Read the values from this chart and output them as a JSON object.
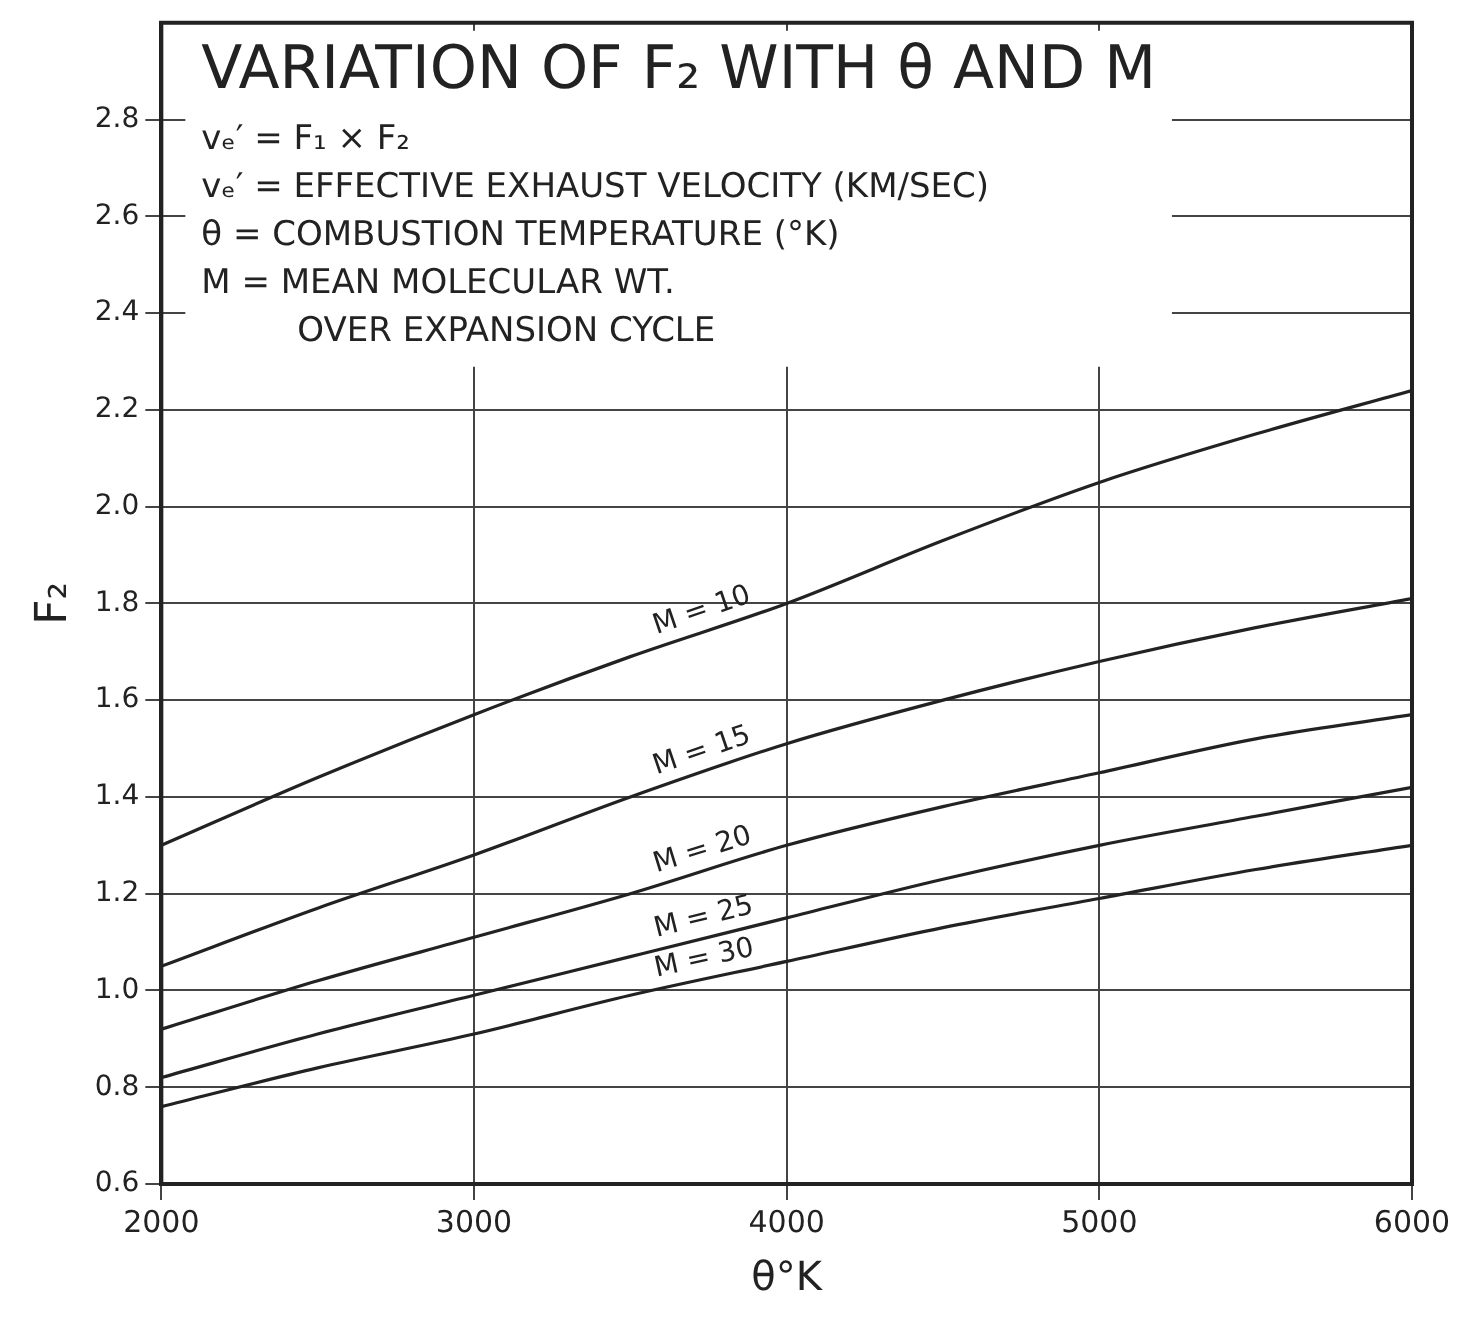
{
  "chart_data": {
    "type": "line",
    "title": "VARIATION OF F₂ WITH θ AND M",
    "xlabel": "θ°K",
    "ylabel": "F₂",
    "annotations": [
      "vₑ′ = F₁ × F₂",
      "vₑ′ = EFFECTIVE EXHAUST VELOCITY (KM/SEC)",
      "θ = COMBUSTION TEMPERATURE (°K)",
      "M = MEAN MOLECULAR WT.",
      "OVER EXPANSION CYCLE"
    ],
    "x": [
      2000,
      2500,
      3000,
      3500,
      4000,
      4500,
      5000,
      5500,
      6000
    ],
    "series": [
      {
        "name": "M = 10",
        "color": "#222222",
        "values": [
          1.3,
          1.44,
          1.57,
          1.69,
          1.8,
          1.93,
          2.05,
          2.15,
          2.24
        ]
      },
      {
        "name": "M = 15",
        "color": "#222222",
        "values": [
          1.05,
          1.17,
          1.28,
          1.4,
          1.51,
          1.6,
          1.68,
          1.75,
          1.81
        ]
      },
      {
        "name": "M = 20",
        "color": "#222222",
        "values": [
          0.92,
          1.02,
          1.11,
          1.2,
          1.3,
          1.38,
          1.45,
          1.52,
          1.57
        ]
      },
      {
        "name": "M = 25",
        "color": "#222222",
        "values": [
          0.82,
          0.91,
          0.99,
          1.07,
          1.15,
          1.23,
          1.3,
          1.36,
          1.42
        ]
      },
      {
        "name": "M = 30",
        "color": "#222222",
        "values": [
          0.76,
          0.84,
          0.91,
          0.99,
          1.06,
          1.13,
          1.19,
          1.25,
          1.3
        ]
      }
    ],
    "xlim": [
      2000,
      6000
    ],
    "xticks": [
      2000,
      3000,
      4000,
      5000,
      6000
    ],
    "ylim": [
      0.6,
      3.0
    ],
    "yticks": [
      {
        "value": 0.6,
        "label": "0.6"
      },
      {
        "value": 0.8,
        "label": "0.8"
      },
      {
        "value": 1.0,
        "label": "1.0"
      },
      {
        "value": 1.2,
        "label": "1.2"
      },
      {
        "value": 1.4,
        "label": "1.4"
      },
      {
        "value": 1.6,
        "label": "1.6"
      },
      {
        "value": 1.8,
        "label": "1.8"
      },
      {
        "value": 2.0,
        "label": "2.0"
      },
      {
        "value": 2.2,
        "label": "2.2"
      },
      {
        "value": 2.4,
        "label": "2.4"
      },
      {
        "value": 2.6,
        "label": "2.6"
      },
      {
        "value": 2.8,
        "label": "2.8"
      }
    ],
    "grid": true,
    "legend": false,
    "marker": "none",
    "line_style": "solid"
  }
}
